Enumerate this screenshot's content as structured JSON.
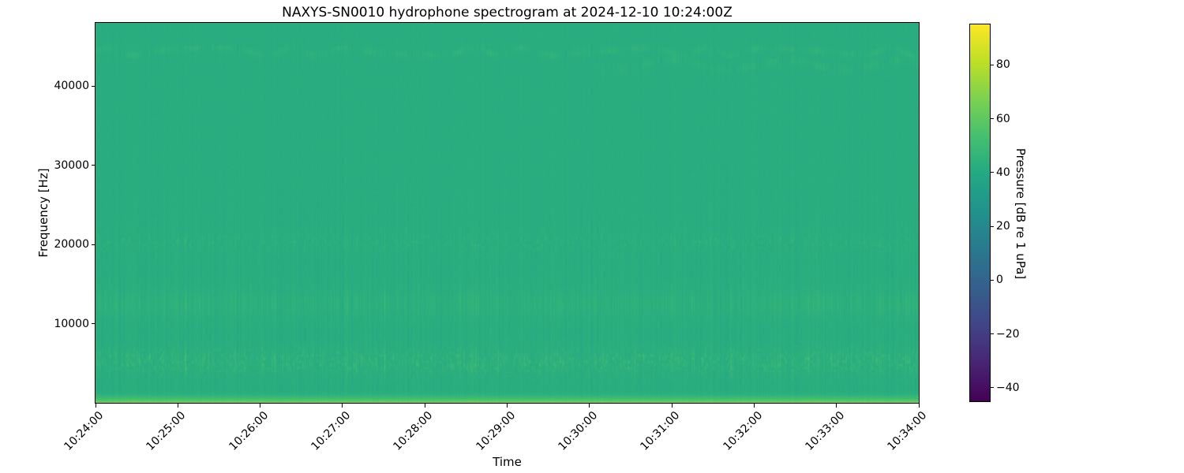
{
  "chart_data": {
    "type": "heatmap",
    "subtype": "spectrogram",
    "title": "NAXYS-SN0010 hydrophone spectrogram at 2024-12-10 10:24:00Z",
    "xlabel": "Time",
    "ylabel": "Frequency [Hz]",
    "colorbar_label": "Pressure [dB re 1 uPa]",
    "x_ticks": [
      "10:24:00",
      "10:25:00",
      "10:26:00",
      "10:27:00",
      "10:28:00",
      "10:29:00",
      "10:30:00",
      "10:31:00",
      "10:32:00",
      "10:33:00",
      "10:34:00"
    ],
    "x_tick_rotation_deg": 45,
    "y_ticks": [
      "10000",
      "20000",
      "30000",
      "40000"
    ],
    "y_tick_values": [
      10000,
      20000,
      30000,
      40000
    ],
    "freq_range_hz": [
      0,
      48000
    ],
    "colorbar_ticks": [
      "80",
      "60",
      "40",
      "20",
      "0",
      "−20",
      "−40"
    ],
    "colorbar_tick_values": [
      80,
      60,
      40,
      20,
      0,
      -20,
      -40
    ],
    "value_range_db": [
      -45,
      95
    ],
    "colormap": "viridis",
    "colormap_stops": [
      "#440154",
      "#482475",
      "#414487",
      "#355f8d",
      "#2a788e",
      "#21918c",
      "#22a884",
      "#44bf70",
      "#7ad151",
      "#bddf26",
      "#fde725"
    ],
    "background_level_db": 42,
    "grid": false,
    "features": [
      {
        "name": "broadband-surface-noise",
        "freq_hz": [
          0,
          1600
        ],
        "peak_db": 64,
        "style": "bottom-gradient"
      },
      {
        "name": "tonal-band-5k",
        "center_hz": 5200,
        "sigma_hz": 1200,
        "boost_db": 8,
        "style": "speckle-dashes"
      },
      {
        "name": "tonal-band-12k",
        "center_hz": 12500,
        "sigma_hz": 1300,
        "boost_db": 4,
        "style": "vertical-stripes"
      },
      {
        "name": "tonal-band-20k",
        "center_hz": 20300,
        "sigma_hz": 800,
        "boost_db": 3,
        "style": "sparse-dashes"
      },
      {
        "name": "wavy-band-44k",
        "center_hz": 44400,
        "wobble_hz": 450,
        "boost_db": 3,
        "style": "wavy-dotted",
        "x_extent": "full"
      },
      {
        "name": "wavy-band-43k",
        "center_hz": 42700,
        "wobble_hz": 600,
        "boost_db": 2.5,
        "style": "wavy-dotted",
        "x_extent": "right-third"
      }
    ],
    "noise": {
      "column_db": 1.3,
      "pixel_db": 1.7,
      "column_spike_db": 5,
      "spike_probability": 0.05
    },
    "seed": 20241210
  }
}
